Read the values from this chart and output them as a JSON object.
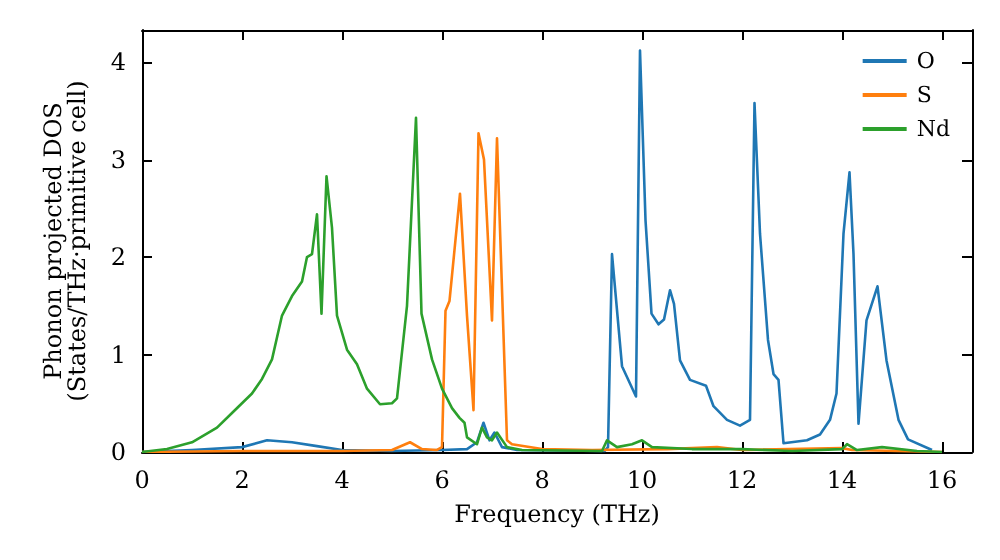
{
  "chart_data": {
    "type": "line",
    "xlabel": "Frequency (THz)",
    "ylabel": "Phonon projected DOS\n(States/THz·primitive cell)",
    "xlim": [
      0,
      16.6
    ],
    "ylim": [
      0,
      4.33
    ],
    "xticks": [
      0,
      2,
      4,
      6,
      8,
      10,
      12,
      14,
      16
    ],
    "yticks": [
      0,
      1,
      2,
      3,
      4
    ],
    "legend": "top right",
    "grid": false,
    "marker": "none",
    "line_style": "solid",
    "series": [
      {
        "name": "O",
        "color": "#1f77b4",
        "x": [
          0,
          1,
          2,
          2.5,
          3,
          3.5,
          4,
          5,
          6,
          6.5,
          6.7,
          6.83,
          6.95,
          7.05,
          7.2,
          7.5,
          9.25,
          9.32,
          9.4,
          9.6,
          9.88,
          9.96,
          10.07,
          10.19,
          10.33,
          10.44,
          10.56,
          10.64,
          10.76,
          10.96,
          11.28,
          11.43,
          11.7,
          11.96,
          12.16,
          12.25,
          12.36,
          12.52,
          12.63,
          12.73,
          12.83,
          13.3,
          13.56,
          13.76,
          13.89,
          14.03,
          14.15,
          14.23,
          14.33,
          14.49,
          14.71,
          14.89,
          15.13,
          15.32,
          15.8
        ],
        "values": [
          0,
          0.02,
          0.05,
          0.12,
          0.1,
          0.06,
          0.02,
          0.01,
          0.02,
          0.03,
          0.1,
          0.3,
          0.12,
          0.2,
          0.05,
          0.02,
          0.01,
          0.05,
          2.03,
          0.88,
          0.57,
          4.12,
          2.38,
          1.42,
          1.31,
          1.36,
          1.66,
          1.52,
          0.94,
          0.74,
          0.68,
          0.47,
          0.33,
          0.27,
          0.33,
          3.58,
          2.24,
          1.15,
          0.8,
          0.74,
          0.09,
          0.12,
          0.18,
          0.33,
          0.6,
          2.24,
          2.87,
          2.03,
          0.29,
          1.35,
          1.7,
          0.94,
          0.33,
          0.13,
          0.02
        ]
      },
      {
        "name": "S",
        "color": "#ff7f0e",
        "x": [
          0,
          2,
          4,
          5,
          5.36,
          5.6,
          5.89,
          6.0,
          6.07,
          6.15,
          6.36,
          6.5,
          6.63,
          6.73,
          6.84,
          7.0,
          7.1,
          7.3,
          7.4,
          8,
          9,
          10.5,
          11.5,
          12,
          14,
          14.2,
          16
        ],
        "values": [
          0,
          0.01,
          0.01,
          0.02,
          0.1,
          0.03,
          0.02,
          0.05,
          1.45,
          1.55,
          2.65,
          1.4,
          0.43,
          3.27,
          3.0,
          1.35,
          3.22,
          0.12,
          0.08,
          0.03,
          0.02,
          0.03,
          0.05,
          0.02,
          0.04,
          0.02,
          0
        ]
      },
      {
        "name": "Nd",
        "color": "#2ca02c",
        "x": [
          0,
          0.5,
          1,
          1.5,
          1.8,
          2,
          2.2,
          2.4,
          2.6,
          2.8,
          3,
          3.2,
          3.3,
          3.4,
          3.5,
          3.59,
          3.69,
          3.8,
          3.9,
          4.1,
          4.3,
          4.5,
          4.76,
          5.0,
          5.1,
          5.3,
          5.48,
          5.59,
          5.8,
          6,
          6.2,
          6.35,
          6.45,
          6.5,
          6.7,
          6.8,
          6.9,
          7,
          7.1,
          7.3,
          7.6,
          9.2,
          9.3,
          9.5,
          9.8,
          10,
          10.2,
          11,
          12,
          13,
          14,
          14.1,
          14.3,
          14.8,
          15.5,
          16
        ],
        "values": [
          0,
          0.03,
          0.1,
          0.25,
          0.4,
          0.5,
          0.6,
          0.75,
          0.95,
          1.4,
          1.6,
          1.75,
          2.0,
          2.03,
          2.44,
          1.42,
          2.83,
          2.3,
          1.4,
          1.05,
          0.9,
          0.65,
          0.49,
          0.5,
          0.55,
          1.5,
          3.43,
          1.42,
          0.95,
          0.65,
          0.45,
          0.35,
          0.3,
          0.15,
          0.08,
          0.25,
          0.15,
          0.12,
          0.2,
          0.05,
          0.02,
          0.01,
          0.12,
          0.05,
          0.08,
          0.12,
          0.05,
          0.03,
          0.03,
          0.01,
          0.03,
          0.08,
          0.02,
          0.05,
          0.01,
          0
        ]
      }
    ]
  }
}
